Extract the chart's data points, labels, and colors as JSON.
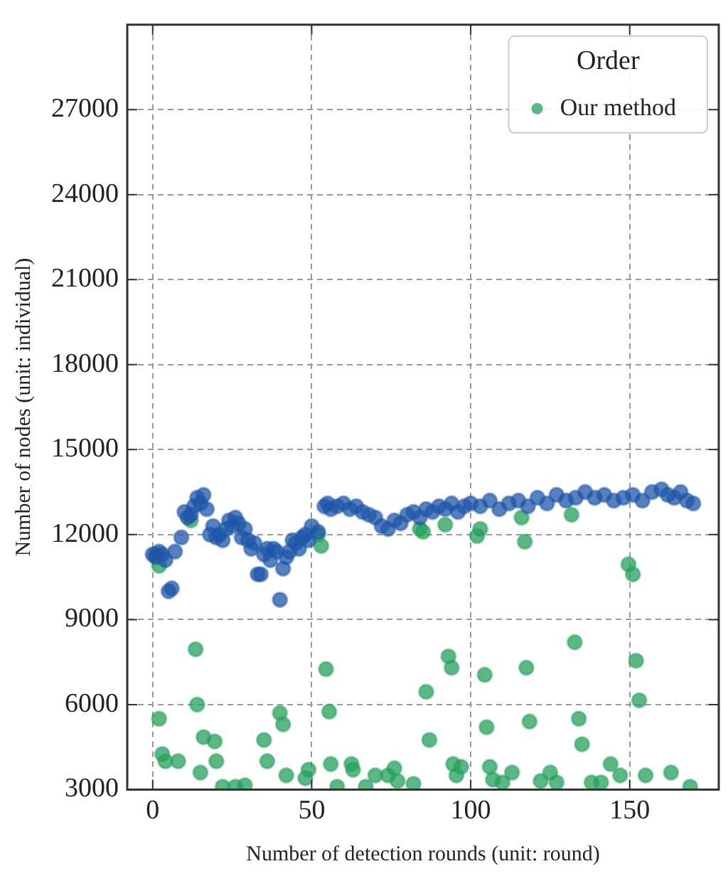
{
  "chart_data": {
    "type": "scatter",
    "xlabel": "Number of detection rounds (unit: round)",
    "ylabel": "Number of nodes (unit: individual)",
    "legend_title": "Order",
    "legend": "top right",
    "grid": true,
    "marker": "circle",
    "line_style": "dashed",
    "xlim": [
      -8,
      178
    ],
    "xticks": [
      0,
      50,
      100,
      150
    ],
    "ylim": [
      3000,
      30000
    ],
    "yticks": [
      3000,
      6000,
      9000,
      12000,
      15000,
      18000,
      21000,
      24000,
      27000
    ],
    "series": [
      {
        "color": "#1f56a8",
        "x": [
          0,
          1,
          2,
          3,
          4,
          5,
          6,
          7,
          9,
          10,
          11,
          12,
          13,
          14,
          15,
          16,
          17,
          18,
          19,
          20,
          21,
          22,
          23,
          24,
          25,
          26,
          27,
          28,
          29,
          30,
          31,
          32,
          33,
          34,
          35,
          36,
          37,
          38,
          39,
          40,
          41,
          42,
          43,
          44,
          45,
          46,
          47,
          48,
          49,
          50,
          52,
          54,
          55,
          56,
          58,
          60,
          62,
          64,
          66,
          68,
          70,
          72,
          74,
          76,
          78,
          80,
          82,
          84,
          86,
          88,
          90,
          92,
          94,
          96,
          98,
          100,
          103,
          106,
          109,
          112,
          115,
          118,
          121,
          124,
          127,
          130,
          133,
          136,
          139,
          142,
          145,
          148,
          151,
          154,
          157,
          160,
          162,
          164,
          166,
          168,
          170
        ],
        "values": [
          11300,
          11200,
          11400,
          11300,
          11100,
          10000,
          10100,
          11400,
          11900,
          12800,
          12600,
          12700,
          13000,
          13300,
          13100,
          13400,
          12900,
          12000,
          12300,
          11900,
          12000,
          11800,
          12200,
          12500,
          12300,
          12600,
          12400,
          11900,
          12200,
          11800,
          11500,
          11700,
          10600,
          10600,
          11300,
          11500,
          11100,
          11500,
          11400,
          9700,
          10800,
          11200,
          11400,
          11800,
          11700,
          11500,
          11900,
          12000,
          11800,
          12300,
          12100,
          13000,
          13100,
          12900,
          13000,
          13100,
          12900,
          13000,
          12800,
          12700,
          12600,
          12300,
          12200,
          12500,
          12400,
          12700,
          12800,
          12600,
          12900,
          12800,
          13000,
          12900,
          13100,
          12800,
          13000,
          13100,
          13000,
          13200,
          12900,
          13100,
          13200,
          13000,
          13300,
          13100,
          13400,
          13200,
          13300,
          13500,
          13300,
          13400,
          13200,
          13300,
          13400,
          13200,
          13500,
          13600,
          13400,
          13300,
          13500,
          13200,
          13100
        ]
      },
      {
        "name": "Our method",
        "color": "#24a05c",
        "x": [
          1,
          2,
          2,
          3,
          4,
          8,
          12,
          13.5,
          14,
          15,
          16,
          19.5,
          20,
          22,
          26,
          29,
          35,
          36,
          40,
          41,
          42,
          48,
          49,
          52,
          53,
          54.5,
          55.5,
          56,
          58,
          62.5,
          63,
          67,
          70,
          74,
          76,
          77,
          82,
          84,
          85,
          86,
          87,
          92,
          93,
          94,
          94.5,
          95.5,
          97,
          102,
          103,
          104.4,
          105,
          106,
          107,
          110,
          113,
          116,
          117,
          117.5,
          118.5,
          122,
          125,
          127,
          131.7,
          132.7,
          134,
          135,
          138,
          141,
          144,
          147,
          149.6,
          151,
          152,
          153,
          155,
          163,
          169
        ],
        "values": [
          11300,
          10900,
          5500,
          4250,
          4000,
          4000,
          12500,
          7950,
          6000,
          3600,
          4850,
          4700,
          4000,
          3100,
          3100,
          3150,
          4750,
          4000,
          5700,
          5300,
          3500,
          3400,
          3700,
          12000,
          11600,
          7250,
          5750,
          3900,
          3100,
          3900,
          3700,
          3100,
          3500,
          3500,
          3750,
          3300,
          3200,
          12200,
          12100,
          6450,
          4750,
          12350,
          7700,
          7300,
          3900,
          3500,
          3800,
          11950,
          12200,
          7050,
          5200,
          3800,
          3350,
          3250,
          3600,
          12600,
          11750,
          7300,
          5400,
          3300,
          3600,
          3250,
          12700,
          8200,
          5500,
          4600,
          3250,
          3250,
          3900,
          3500,
          10950,
          10600,
          7550,
          6150,
          3500,
          3600,
          3100
        ]
      }
    ]
  }
}
